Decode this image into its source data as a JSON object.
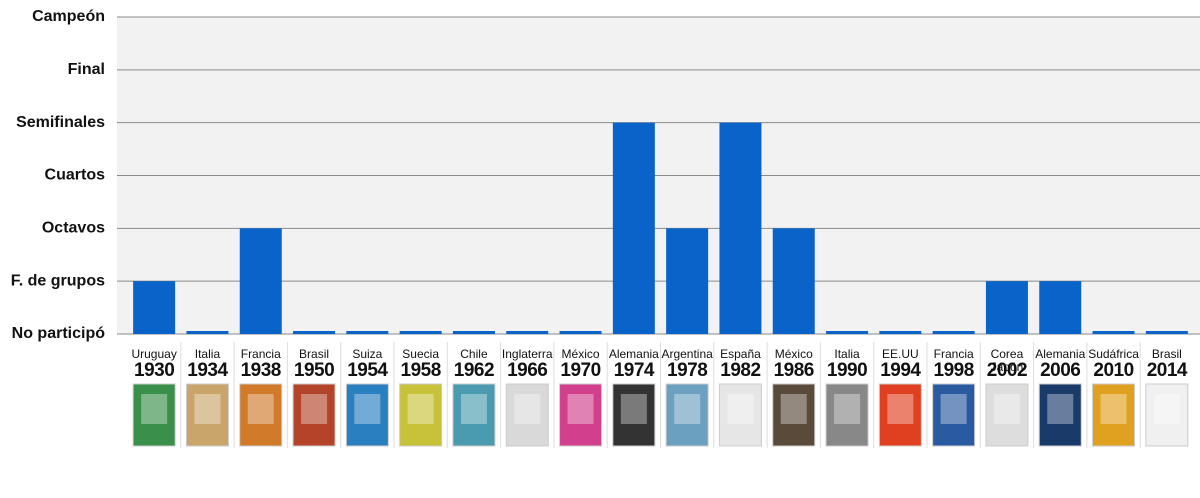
{
  "chart_data": {
    "type": "bar",
    "categories": [
      "1930",
      "1934",
      "1938",
      "1950",
      "1954",
      "1958",
      "1962",
      "1966",
      "1970",
      "1974",
      "1978",
      "1982",
      "1986",
      "1990",
      "1994",
      "1998",
      "2002",
      "2006",
      "2010",
      "2014"
    ],
    "hosts": [
      "Uruguay",
      "Italia",
      "Francia",
      "Brasil",
      "Suiza",
      "Suecia",
      "Chile",
      "Inglaterra",
      "México",
      "Alemania",
      "Argentina",
      "España",
      "México",
      "Italia",
      "EE.UU",
      "Francia",
      "Corea Japón",
      "Alemania",
      "Sudáfrica",
      "Brasil"
    ],
    "values": [
      1,
      0,
      2,
      0,
      0,
      0,
      0,
      0,
      0,
      4,
      2,
      4,
      2,
      0,
      0,
      0,
      1,
      1,
      0,
      0
    ],
    "color": "#0a63c9",
    "ylim": [
      0,
      6
    ],
    "yticks": [
      {
        "value": 0,
        "label": "No participó"
      },
      {
        "value": 1,
        "label": "F. de grupos"
      },
      {
        "value": 2,
        "label": "Octavos"
      },
      {
        "value": 3,
        "label": "Cuartos"
      },
      {
        "value": 4,
        "label": "Semifinales"
      },
      {
        "value": 5,
        "label": "Final"
      },
      {
        "value": 6,
        "label": "Campeón"
      }
    ],
    "grid": true
  }
}
